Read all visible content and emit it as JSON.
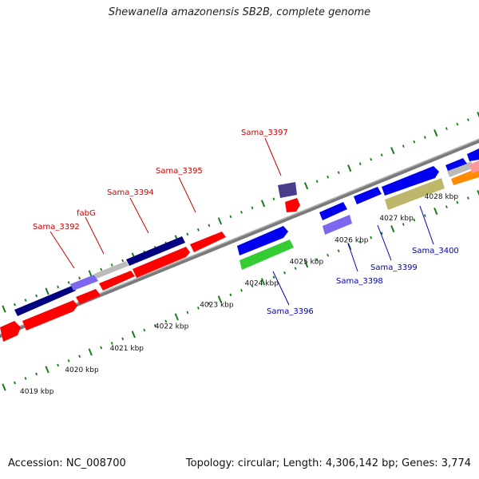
{
  "title": "Shewanella amazonensis SB2B, complete genome",
  "footer": {
    "accession": "Accession: NC_008700",
    "topology": "Topology: circular; Length: 4,306,142 bp; Genes: 3,774"
  },
  "colors": {
    "background": "#ffffff",
    "backbone": "#808080",
    "tick": "#1a7a1a",
    "forward_label": "#cc0000",
    "reverse_label": "#0000b0",
    "red_gene": "#ff0000",
    "blue_gene": "#0000ee",
    "navy_gene": "#000080",
    "lavender_gene": "#7b68ee",
    "green_gene": "#33cc33",
    "olive_gene": "#bdb76b",
    "grey_gene": "#bbbbbb",
    "orange_gene": "#ff8c00",
    "pink_gene": "#ff9999"
  },
  "scale": {
    "unit": "kbp",
    "ticks": [
      {
        "value": 4019,
        "label": "4019 kbp"
      },
      {
        "value": 4020,
        "label": "4020 kbp"
      },
      {
        "value": 4021,
        "label": "4021 kbp"
      },
      {
        "value": 4022,
        "label": "4022 kbp"
      },
      {
        "value": 4023,
        "label": "4023 kbp"
      },
      {
        "value": 4024,
        "label": "4024 kbp"
      },
      {
        "value": 4025,
        "label": "4025 kbp"
      },
      {
        "value": 4026,
        "label": "4026 kbp"
      },
      {
        "value": 4027,
        "label": "4027 kbp"
      },
      {
        "value": 4028,
        "label": "4028 kbp"
      }
    ]
  },
  "gene_labels": {
    "forward": [
      "Sama_3392",
      "fabG",
      "Sama_3394",
      "Sama_3395",
      "Sama_3397"
    ],
    "reverse": [
      "Sama_3396",
      "Sama_3398",
      "Sama_3399",
      "Sama_3400"
    ]
  }
}
